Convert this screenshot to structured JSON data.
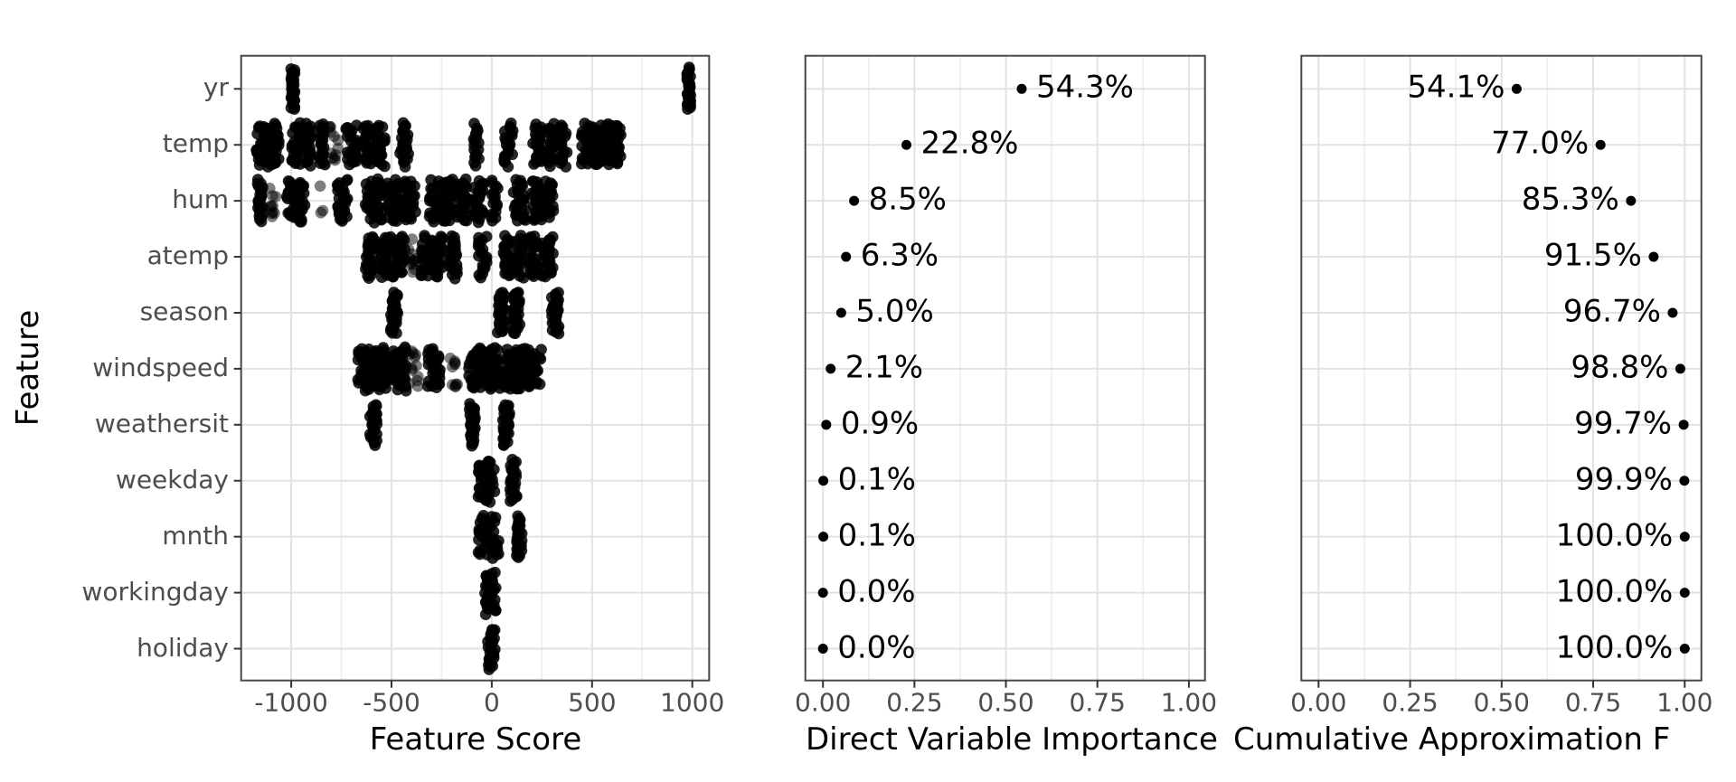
{
  "chart_data": {
    "type": "scatter",
    "figure_kind": "variable-importance-triptych",
    "features": [
      "yr",
      "temp",
      "hum",
      "atemp",
      "season",
      "windspeed",
      "weathersit",
      "weekday",
      "mnth",
      "workingday",
      "holiday"
    ],
    "shared_ylabel": "Feature",
    "panels": [
      {
        "panel_type": "beeswarm",
        "xlabel": "Feature Score",
        "xtick_labels": [
          "-1000",
          "-500",
          "0",
          "500",
          "1000"
        ],
        "xtick_values": [
          -1000,
          -500,
          0,
          500,
          1000
        ],
        "xlim": [
          -1250,
          1085
        ],
        "band_note": "bands are [score_value, n_dots, half_width_px, sparse_flag]",
        "clusters": [
          {
            "feature": "yr",
            "bands": [
              [
                -992,
                32,
                2,
                0
              ],
              [
                982,
                32,
                2,
                0
              ]
            ]
          },
          {
            "feature": "temp",
            "bands": [
              [
                -1118,
                70,
                13,
                0
              ],
              [
                -975,
                28,
                5,
                0
              ],
              [
                -912,
                20,
                3,
                0
              ],
              [
                -845,
                22,
                4,
                0
              ],
              [
                -788,
                12,
                5,
                1
              ],
              [
                -699,
                28,
                7,
                0
              ],
              [
                -586,
                55,
                12,
                0
              ],
              [
                -437,
                26,
                5,
                0
              ],
              [
                -77,
                18,
                3,
                0
              ],
              [
                84,
                22,
                5,
                0
              ],
              [
                228,
                24,
                6,
                0
              ],
              [
                293,
                18,
                4,
                0
              ],
              [
                352,
                26,
                6,
                0
              ],
              [
                480,
                32,
                8,
                0
              ],
              [
                555,
                55,
                12,
                0
              ],
              [
                622,
                26,
                5,
                0
              ]
            ]
          },
          {
            "feature": "hum",
            "bands": [
              [
                -1154,
                24,
                3,
                0
              ],
              [
                -1093,
                10,
                4,
                1
              ],
              [
                -978,
                50,
                10,
                0
              ],
              [
                -848,
                3,
                2,
                1
              ],
              [
                -744,
                28,
                6,
                0
              ],
              [
                -590,
                45,
                9,
                0
              ],
              [
                -496,
                30,
                8,
                0
              ],
              [
                -415,
                30,
                8,
                0
              ],
              [
                -252,
                55,
                13,
                0
              ],
              [
                -148,
                28,
                7,
                0
              ],
              [
                -67,
                24,
                6,
                0
              ],
              [
                14,
                16,
                4,
                0
              ],
              [
                140,
                26,
                7,
                0
              ],
              [
                253,
                50,
                12,
                0
              ]
            ]
          },
          {
            "feature": "atemp",
            "bands": [
              [
                -604,
                26,
                6,
                0
              ],
              [
                -541,
                20,
                5,
                0
              ],
              [
                -469,
                40,
                8,
                0
              ],
              [
                -398,
                12,
                6,
                1
              ],
              [
                -297,
                50,
                13,
                0
              ],
              [
                -185,
                24,
                5,
                0
              ],
              [
                -45,
                20,
                5,
                0
              ],
              [
                77,
                22,
                5,
                0
              ],
              [
                140,
                22,
                5,
                0
              ],
              [
                244,
                55,
                14,
                0
              ]
            ]
          },
          {
            "feature": "season",
            "bands": [
              [
                -487,
                32,
                4,
                0
              ],
              [
                46,
                32,
                4,
                0
              ],
              [
                122,
                32,
                4,
                0
              ],
              [
                316,
                32,
                4,
                0
              ]
            ]
          },
          {
            "feature": "windspeed",
            "bands": [
              [
                -645,
                26,
                5,
                0
              ],
              [
                -595,
                22,
                4,
                0
              ],
              [
                -546,
                24,
                5,
                0
              ],
              [
                -469,
                45,
                10,
                0
              ],
              [
                -390,
                12,
                5,
                1
              ],
              [
                -288,
                28,
                7,
                0
              ],
              [
                -190,
                10,
                4,
                1
              ],
              [
                -60,
                60,
                14,
                0
              ],
              [
                63,
                70,
                16,
                0
              ],
              [
                185,
                60,
                14,
                0
              ]
            ]
          },
          {
            "feature": "weathersit",
            "bands": [
              [
                -590,
                28,
                4,
                0
              ],
              [
                -94,
                28,
                4,
                0
              ],
              [
                73,
                28,
                4,
                0
              ]
            ]
          },
          {
            "feature": "weekday",
            "bands": [
              [
                -27,
                40,
                9,
                0
              ],
              [
                108,
                26,
                4,
                0
              ]
            ]
          },
          {
            "feature": "mnth",
            "bands": [
              [
                -18,
                45,
                12,
                0
              ],
              [
                135,
                28,
                4,
                0
              ]
            ]
          },
          {
            "feature": "workingday",
            "bands": [
              [
                -7,
                32,
                6,
                0
              ]
            ]
          },
          {
            "feature": "holiday",
            "bands": [
              [
                -2,
                28,
                4,
                0
              ]
            ]
          }
        ]
      },
      {
        "panel_type": "dot-labeled",
        "label_side": "right",
        "xlabel": "Direct Variable Importance",
        "xtick_labels": [
          "0.00",
          "0.25",
          "0.50",
          "0.75",
          "1.00"
        ],
        "xtick_values": [
          0,
          0.25,
          0.5,
          0.75,
          1
        ],
        "xlim": [
          -0.05,
          1.05
        ],
        "values": [
          0.543,
          0.228,
          0.085,
          0.063,
          0.05,
          0.021,
          0.009,
          0.001,
          0.001,
          0.0,
          0.0
        ],
        "labels": [
          "54.3%",
          "22.8%",
          "8.5%",
          "6.3%",
          "5.0%",
          "2.1%",
          "0.9%",
          "0.1%",
          "0.1%",
          "0.0%",
          "0.0%"
        ]
      },
      {
        "panel_type": "dot-labeled",
        "label_side": "left",
        "xlabel": "Cumulative Approximation F",
        "xtick_labels": [
          "0.00",
          "0.25",
          "0.50",
          "0.75",
          "1.00"
        ],
        "xtick_values": [
          0,
          0.25,
          0.5,
          0.75,
          1
        ],
        "xlim": [
          -0.05,
          1.05
        ],
        "values": [
          0.541,
          0.77,
          0.853,
          0.915,
          0.967,
          0.988,
          0.997,
          0.999,
          1.0,
          1.0,
          1.0
        ],
        "labels": [
          "54.1%",
          "77.0%",
          "85.3%",
          "91.5%",
          "96.7%",
          "98.8%",
          "99.7%",
          "99.9%",
          "100.0%",
          "100.0%",
          "100.0%"
        ]
      }
    ],
    "colors": {
      "dot": "#000000",
      "axis_text": "#4D4D4D",
      "title_text": "#000000",
      "grid_major": "#E2E2E2",
      "grid_minor": "#EDEDED",
      "panel_border": "#474747",
      "tick": "#333333",
      "background": "#FFFFFF"
    },
    "grid": "major+minor vertical, major horizontal per feature row",
    "legend": "none"
  }
}
